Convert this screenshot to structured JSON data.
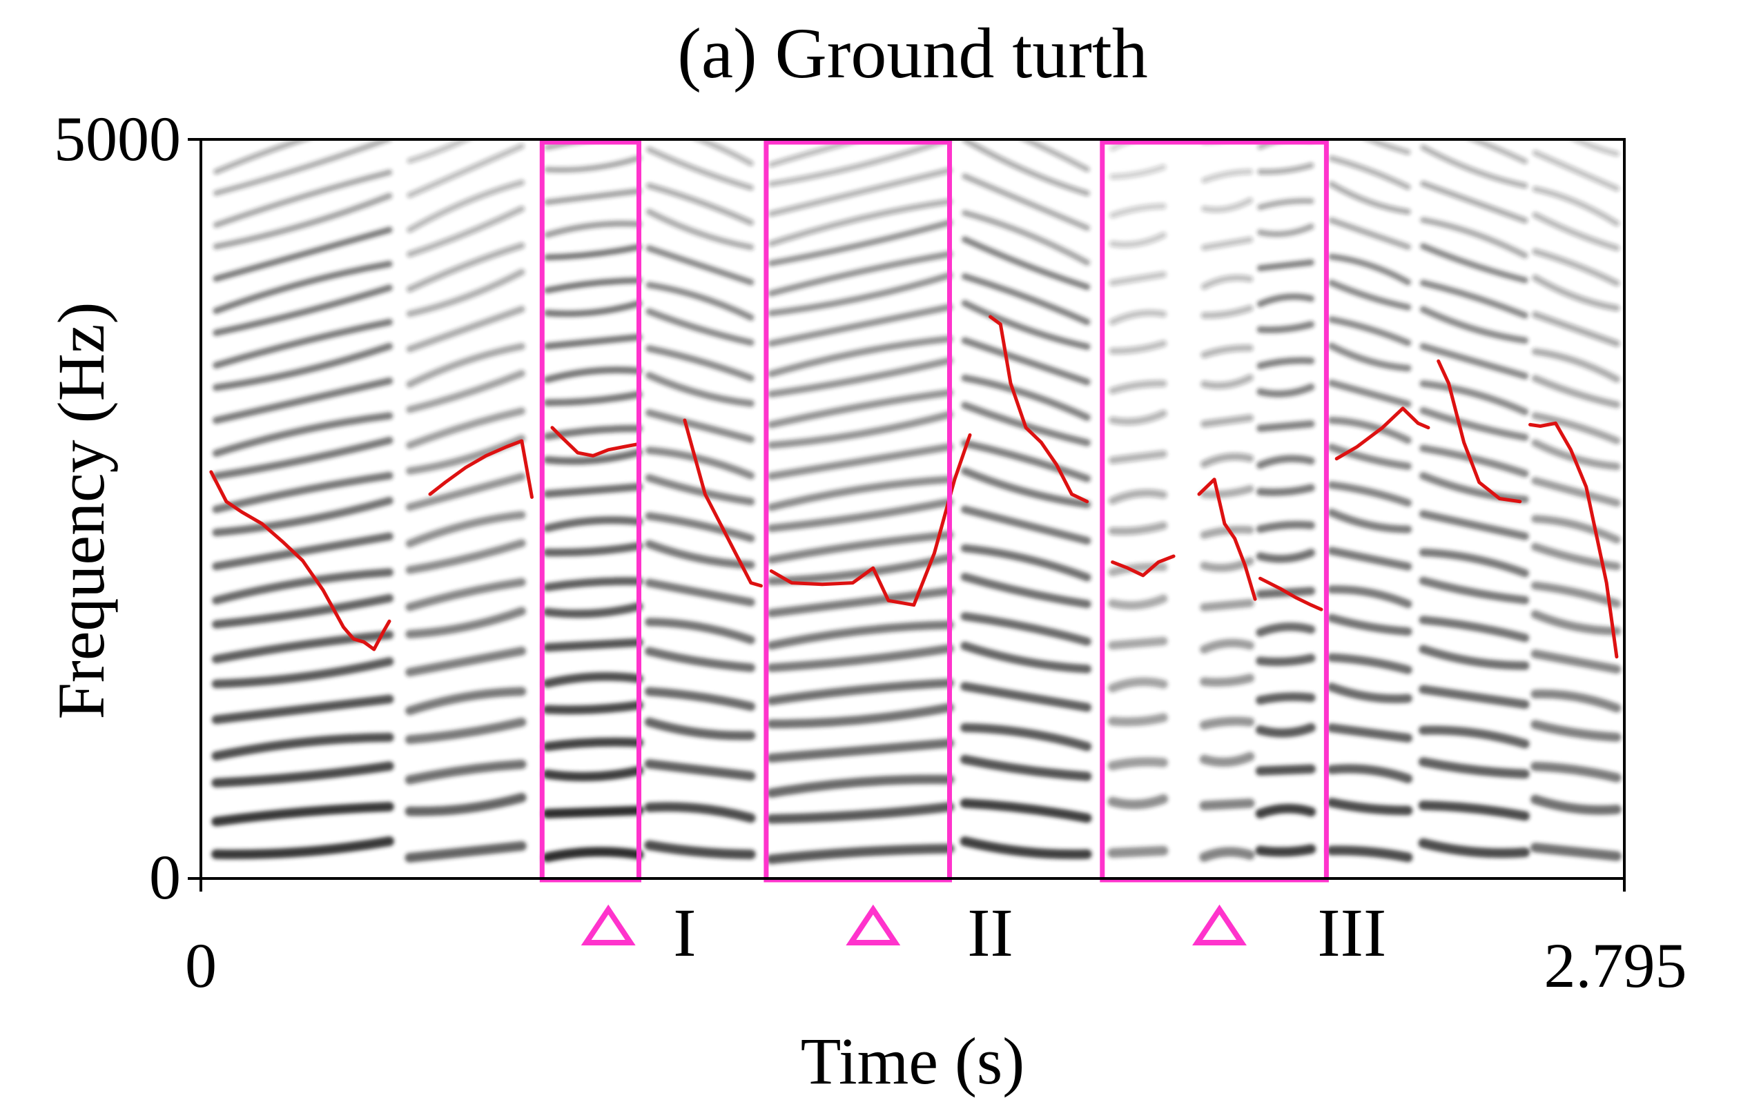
{
  "chart_data": {
    "type": "spectrogram",
    "title": "(a) Ground turth",
    "xlabel": "Time (s)",
    "ylabel": "Frequency (Hz)",
    "xlim": [
      0,
      2.795
    ],
    "ylim": [
      0,
      5000
    ],
    "x_ticks": [
      "0",
      "2.795"
    ],
    "y_ticks": [
      "5000",
      "0"
    ],
    "grid": false,
    "colors": {
      "spectrogram": "#222222",
      "f0_contour": "#dd1111",
      "highlight": "#ff33cc"
    },
    "segments": [
      {
        "x0": 0.03,
        "x1": 0.37,
        "energy": 0.9,
        "harmonics": 24,
        "tilt": 0.25,
        "dark_top": true
      },
      {
        "x0": 0.41,
        "x1": 0.63,
        "energy": 0.7,
        "harmonics": 22,
        "tilt": 0.35,
        "dark_top": false
      },
      {
        "x0": 0.68,
        "x1": 0.86,
        "energy": 0.95,
        "harmonics": 24,
        "tilt": 0.1,
        "dark_top": true
      },
      {
        "x0": 0.88,
        "x1": 1.08,
        "energy": 0.8,
        "harmonics": 22,
        "tilt": -0.3,
        "dark_top": true
      },
      {
        "x0": 1.12,
        "x1": 1.47,
        "energy": 0.75,
        "harmonics": 26,
        "tilt": 0.2,
        "dark_top": true
      },
      {
        "x0": 1.5,
        "x1": 1.74,
        "energy": 0.85,
        "harmonics": 22,
        "tilt": -0.35,
        "dark_top": true
      },
      {
        "x0": 1.79,
        "x1": 1.89,
        "energy": 0.5,
        "harmonics": 20,
        "tilt": 0.15,
        "dark_top": false
      },
      {
        "x0": 1.97,
        "x1": 2.06,
        "energy": 0.55,
        "harmonics": 20,
        "tilt": 0.15,
        "dark_top": false
      },
      {
        "x0": 2.08,
        "x1": 2.18,
        "energy": 0.85,
        "harmonics": 22,
        "tilt": 0.1,
        "dark_top": true
      },
      {
        "x0": 2.22,
        "x1": 2.37,
        "energy": 0.8,
        "harmonics": 22,
        "tilt": -0.3,
        "dark_top": true
      },
      {
        "x0": 2.4,
        "x1": 2.6,
        "energy": 0.8,
        "harmonics": 22,
        "tilt": -0.3,
        "dark_top": true
      },
      {
        "x0": 2.62,
        "x1": 2.78,
        "energy": 0.65,
        "harmonics": 22,
        "tilt": -0.35,
        "dark_top": false
      }
    ],
    "series": [
      {
        "x": [
          0.02,
          0.05,
          0.08,
          0.12,
          0.16,
          0.2,
          0.24,
          0.28,
          0.3,
          0.32,
          0.34,
          0.36,
          0.37
        ],
        "y": [
          2750,
          2550,
          2480,
          2400,
          2280,
          2150,
          1950,
          1700,
          1620,
          1600,
          1550,
          1680,
          1740
        ]
      },
      {
        "x": [
          0.45,
          0.48,
          0.52,
          0.56,
          0.6,
          0.63,
          0.65
        ],
        "y": [
          2600,
          2680,
          2780,
          2860,
          2920,
          2960,
          2580
        ]
      },
      {
        "x": [
          0.69,
          0.71,
          0.74,
          0.77,
          0.8,
          0.83,
          0.86
        ],
        "y": [
          3050,
          2980,
          2880,
          2860,
          2900,
          2920,
          2940
        ]
      },
      {
        "x": [
          0.95,
          0.97,
          0.99,
          1.02,
          1.05,
          1.08,
          1.1
        ],
        "y": [
          3100,
          2850,
          2600,
          2400,
          2200,
          2000,
          1980
        ]
      },
      {
        "x": [
          1.12,
          1.16,
          1.22,
          1.28,
          1.32,
          1.35,
          1.4,
          1.44,
          1.48,
          1.51
        ],
        "y": [
          2080,
          2000,
          1990,
          2000,
          2100,
          1880,
          1850,
          2200,
          2700,
          3000
        ]
      },
      {
        "x": [
          1.55,
          1.57,
          1.59,
          1.62,
          1.65,
          1.68,
          1.71,
          1.74
        ],
        "y": [
          3800,
          3750,
          3350,
          3050,
          2950,
          2800,
          2600,
          2550
        ]
      },
      {
        "x": [
          1.79,
          1.82,
          1.85,
          1.88,
          1.91
        ],
        "y": [
          2140,
          2100,
          2050,
          2140,
          2180
        ]
      },
      {
        "x": [
          1.96,
          1.99,
          2.01,
          2.03,
          2.05,
          2.07
        ],
        "y": [
          2600,
          2700,
          2400,
          2300,
          2120,
          1890
        ]
      },
      {
        "x": [
          2.08,
          2.12,
          2.15,
          2.18,
          2.2
        ],
        "y": [
          2030,
          1960,
          1900,
          1850,
          1820
        ]
      },
      {
        "x": [
          2.23,
          2.27,
          2.32,
          2.36,
          2.39,
          2.41
        ],
        "y": [
          2840,
          2920,
          3050,
          3180,
          3080,
          3050
        ]
      },
      {
        "x": [
          2.43,
          2.45,
          2.48,
          2.51,
          2.55,
          2.59
        ],
        "y": [
          3500,
          3350,
          2950,
          2680,
          2570,
          2550
        ]
      },
      {
        "x": [
          2.61,
          2.63,
          2.66,
          2.69,
          2.72,
          2.76,
          2.78
        ],
        "y": [
          3070,
          3060,
          3080,
          2900,
          2650,
          2000,
          1500
        ]
      }
    ],
    "highlights": [
      {
        "x0": 0.67,
        "x1": 0.86,
        "label": "I",
        "marker_x": 0.8,
        "label_x": 0.95
      },
      {
        "x0": 1.11,
        "x1": 1.47,
        "label": "II",
        "marker_x": 1.32,
        "label_x": 1.55
      },
      {
        "x0": 1.77,
        "x1": 2.21,
        "label": "III",
        "marker_x": 2.0,
        "label_x": 2.26
      }
    ]
  }
}
